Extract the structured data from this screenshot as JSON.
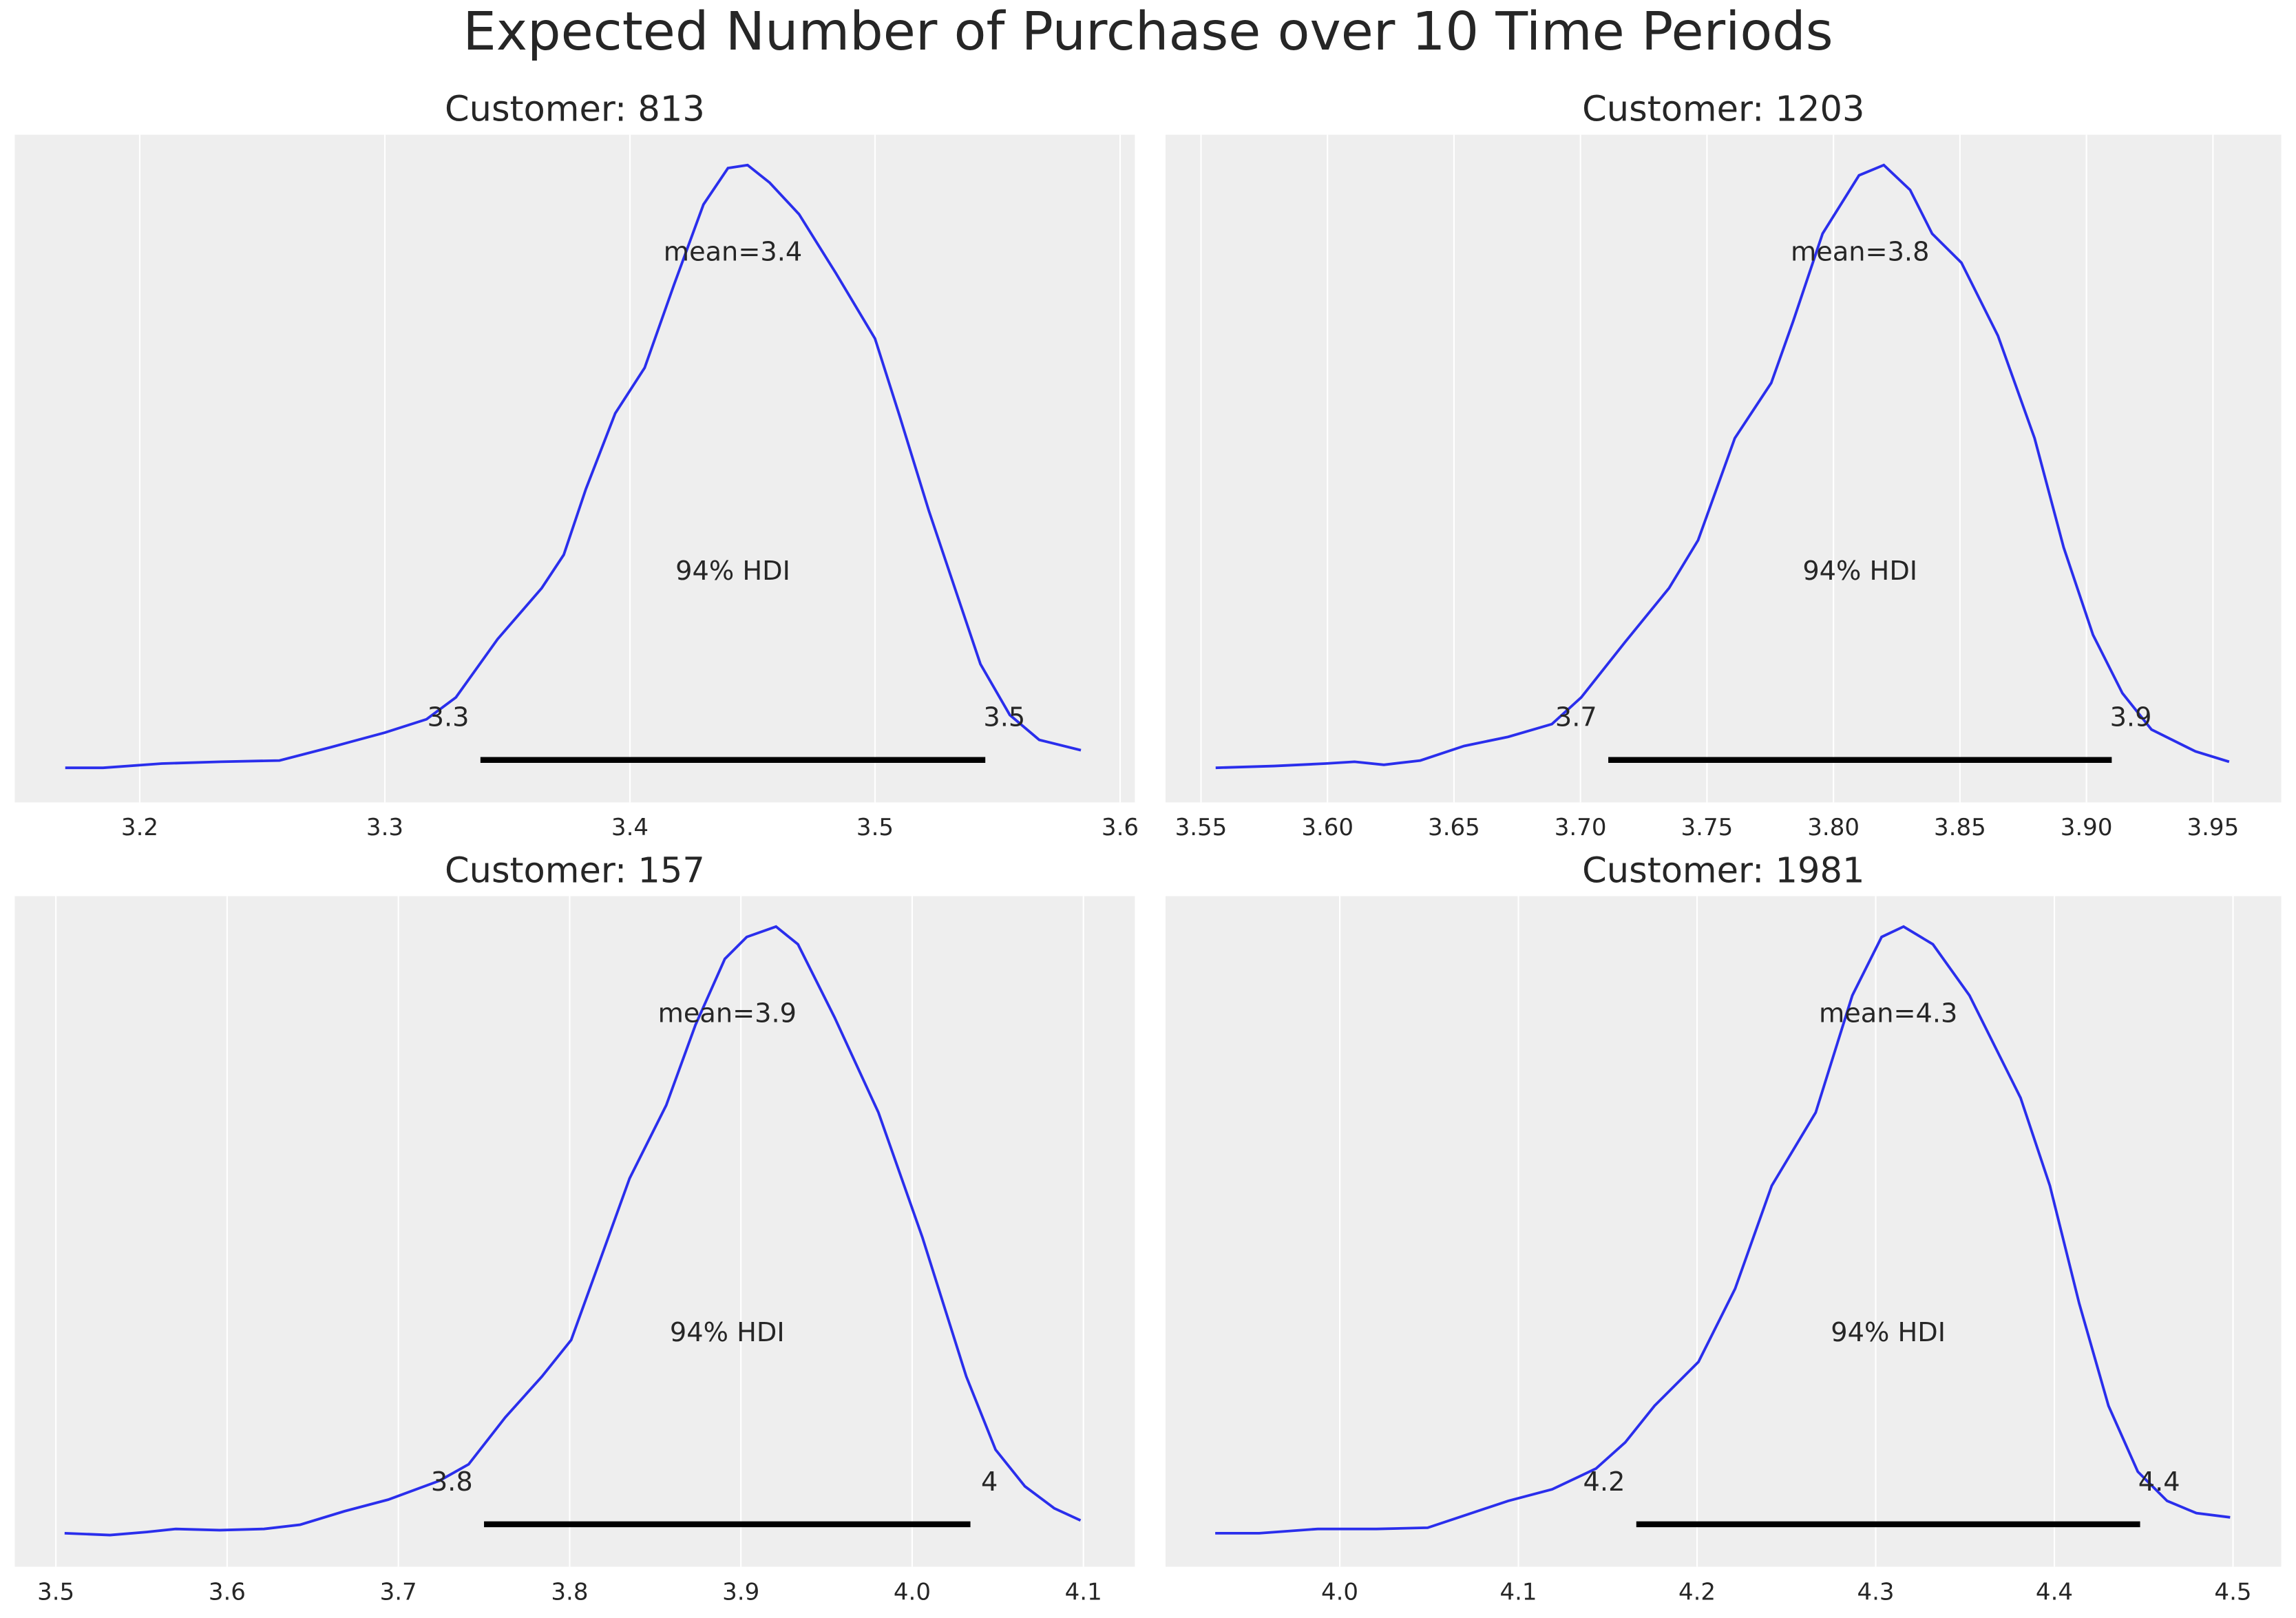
{
  "title": "Expected Number of Purchase over 10 Time Periods",
  "chart_data": [
    {
      "type": "density",
      "title": "Customer: 813",
      "color": "#2a2eec",
      "grid": true,
      "x": [
        3.1696,
        3.185,
        3.209,
        3.233,
        3.257,
        3.278,
        3.3,
        3.317,
        3.329,
        3.346,
        3.364,
        3.373,
        3.382,
        3.394,
        3.406,
        3.418,
        3.43,
        3.44,
        3.448,
        3.457,
        3.469,
        3.484,
        3.5,
        3.51,
        3.522,
        3.534,
        3.543,
        3.555,
        3.567,
        3.584
      ],
      "values": [
        0.007,
        0.007,
        0.014,
        0.017,
        0.019,
        0.041,
        0.065,
        0.087,
        0.123,
        0.219,
        0.303,
        0.358,
        0.466,
        0.591,
        0.666,
        0.803,
        0.935,
        0.995,
        1.0,
        0.971,
        0.919,
        0.822,
        0.714,
        0.587,
        0.43,
        0.286,
        0.178,
        0.094,
        0.053,
        0.036
      ],
      "xlim": [
        3.149,
        3.606
      ],
      "ylim": [
        -0.05,
        1.05
      ],
      "xticks": [
        3.2,
        3.3,
        3.4,
        3.5,
        3.6
      ],
      "mean_label": "mean=3.4",
      "hdi_label": "94% HDI",
      "hdi": [
        {
          "value": 3.339,
          "label": "3.3"
        },
        {
          "value": 3.545,
          "label": "3.5"
        }
      ]
    },
    {
      "type": "density",
      "title": "Customer: 1203",
      "color": "#2a2eec",
      "grid": true,
      "x": [
        3.5558,
        3.5789,
        3.5991,
        3.6107,
        3.6223,
        3.6367,
        3.654,
        3.6714,
        3.6887,
        3.7003,
        3.7176,
        3.735,
        3.7465,
        3.761,
        3.7754,
        3.7841,
        3.7957,
        3.8101,
        3.8199,
        3.8303,
        3.839,
        3.8506,
        3.865,
        3.8795,
        3.891,
        3.9026,
        3.9142,
        3.9257,
        3.9431,
        3.9564
      ],
      "values": [
        0.007,
        0.01,
        0.014,
        0.017,
        0.012,
        0.019,
        0.043,
        0.058,
        0.079,
        0.123,
        0.214,
        0.303,
        0.382,
        0.55,
        0.641,
        0.743,
        0.887,
        0.983,
        1.0,
        0.959,
        0.887,
        0.839,
        0.719,
        0.55,
        0.37,
        0.226,
        0.13,
        0.07,
        0.034,
        0.017
      ],
      "xlim": [
        3.536,
        3.977
      ],
      "ylim": [
        -0.05,
        1.05
      ],
      "xticks": [
        3.55,
        {
          "value": 3.6,
          "label": "3.60"
        },
        3.65,
        {
          "value": 3.7,
          "label": "3.70"
        },
        3.75,
        {
          "value": 3.8,
          "label": "3.80"
        },
        3.85,
        {
          "value": 3.9,
          "label": "3.90"
        },
        3.95
      ],
      "mean_label": "mean=3.8",
      "hdi_label": "94% HDI",
      "hdi": [
        {
          "value": 3.711,
          "label": "3.7"
        },
        {
          "value": 3.91,
          "label": "3.9"
        }
      ]
    },
    {
      "type": "density",
      "title": "Customer: 157",
      "color": "#2a2eec",
      "grid": true,
      "x": [
        3.5051,
        3.5316,
        3.553,
        3.5701,
        3.5957,
        3.6214,
        3.6427,
        3.6684,
        3.694,
        3.7239,
        3.741,
        3.7624,
        3.7838,
        3.8009,
        3.8179,
        3.835,
        3.8564,
        3.8735,
        3.8906,
        3.9034,
        3.9205,
        3.9333,
        3.9547,
        3.9803,
        4.006,
        4.0316,
        4.0487,
        4.0658,
        4.0829,
        4.0983
      ],
      "values": [
        0.005,
        0.002,
        0.007,
        0.012,
        0.01,
        0.012,
        0.019,
        0.041,
        0.06,
        0.091,
        0.118,
        0.195,
        0.262,
        0.322,
        0.454,
        0.587,
        0.707,
        0.839,
        0.947,
        0.983,
        1.0,
        0.971,
        0.851,
        0.695,
        0.49,
        0.262,
        0.142,
        0.082,
        0.046,
        0.026
      ],
      "xlim": [
        3.476,
        4.13
      ],
      "ylim": [
        -0.05,
        1.05
      ],
      "xticks": [
        3.5,
        3.6,
        3.7,
        3.8,
        3.9,
        {
          "value": 4.0,
          "label": "4.0"
        },
        4.1
      ],
      "mean_label": "mean=3.9",
      "hdi_label": "94% HDI",
      "hdi": [
        {
          "value": 3.75,
          "label": "3.8"
        },
        {
          "value": 4.034,
          "label": "4"
        }
      ]
    },
    {
      "type": "density",
      "title": "Customer: 1981",
      "color": "#2a2eec",
      "grid": true,
      "x": [
        3.9303,
        3.9549,
        3.9877,
        4.0205,
        4.0492,
        4.0697,
        4.0943,
        4.1189,
        4.1434,
        4.1598,
        4.1762,
        4.2008,
        4.2213,
        4.2418,
        4.2664,
        4.2869,
        4.3033,
        4.3156,
        4.332,
        4.3525,
        4.3811,
        4.3975,
        4.4139,
        4.4303,
        4.4467,
        4.4631,
        4.4795,
        4.4984
      ],
      "values": [
        0.005,
        0.005,
        0.012,
        0.012,
        0.014,
        0.034,
        0.058,
        0.077,
        0.111,
        0.154,
        0.214,
        0.286,
        0.406,
        0.575,
        0.695,
        0.887,
        0.983,
        1.0,
        0.971,
        0.887,
        0.719,
        0.575,
        0.382,
        0.214,
        0.106,
        0.058,
        0.038,
        0.031
      ],
      "xlim": [
        3.9025,
        4.527
      ],
      "ylim": [
        -0.05,
        1.05
      ],
      "xticks": [
        {
          "value": 4.0,
          "label": "4.0"
        },
        4.1,
        4.2,
        4.3,
        4.4,
        4.5
      ],
      "mean_label": "mean=4.3",
      "hdi_label": "94% HDI",
      "hdi": [
        {
          "value": 4.166,
          "label": "4.2"
        },
        {
          "value": 4.448,
          "label": "4.4"
        }
      ]
    }
  ]
}
